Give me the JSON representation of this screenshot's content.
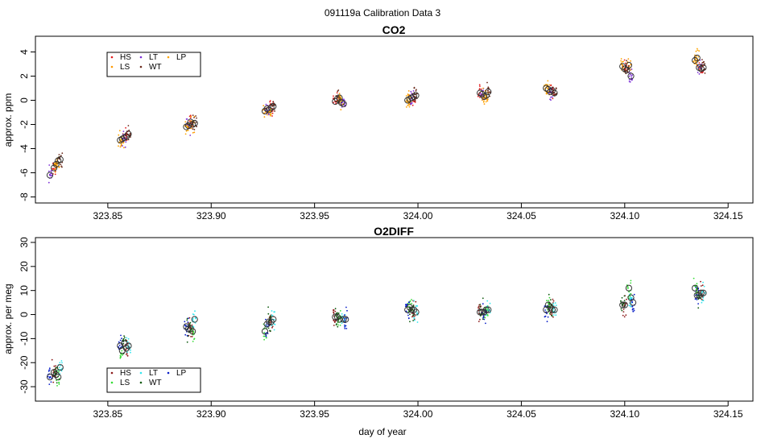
{
  "figure_title": "091119a   Calibration Data 3",
  "colors": {
    "HS": "#e41a1c",
    "LS": "#ff9900",
    "LT": "#7b2fd6",
    "WT": "#6b2a1c",
    "LP": "#ffa500",
    "o2_HS": "#8b1a1a",
    "o2_LS": "#33dd33",
    "o2_LT": "#33e6ee",
    "o2_WT": "#0f5a0f",
    "o2_LP": "#0a1fc8"
  },
  "x_ticks": [
    "323.85",
    "323.90",
    "323.95",
    "324.00",
    "324.05",
    "324.10",
    "324.15"
  ],
  "x_label": "day of year",
  "chart_data": [
    {
      "type": "scatter",
      "title": "CO2",
      "ylabel": "approx. ppm",
      "xlim": [
        323.815,
        324.162
      ],
      "ylim": [
        -8.5,
        5.3
      ],
      "y_ticks": [
        "4",
        "2",
        "0",
        "-2",
        "-4",
        "-6",
        "-8"
      ],
      "legend": {
        "position": "top-left",
        "entries": [
          "HS",
          "LS",
          "LT",
          "WT",
          "LP"
        ]
      },
      "series": [
        {
          "name": "HS",
          "x": [
            323.824,
            323.859,
            323.89,
            323.929,
            323.96,
            323.998,
            324.03,
            324.065,
            324.1,
            324.137
          ],
          "values": [
            -5.6,
            -3.0,
            -1.8,
            -0.6,
            -0.1,
            0.3,
            0.6,
            0.8,
            2.6,
            2.6
          ]
        },
        {
          "name": "LS",
          "x": [
            323.826,
            323.857,
            323.891,
            323.926,
            323.962,
            323.996,
            324.033,
            324.063,
            324.102,
            324.134
          ],
          "values": [
            -5.0,
            -3.2,
            -2.0,
            -0.9,
            0.2,
            0.1,
            0.4,
            0.9,
            2.9,
            3.3
          ]
        },
        {
          "name": "LT",
          "x": [
            323.822,
            323.858,
            323.889,
            323.927,
            323.964,
            323.997,
            324.031,
            324.064,
            324.103,
            324.136
          ],
          "values": [
            -6.2,
            -3.1,
            -2.1,
            -0.7,
            -0.3,
            0.2,
            0.5,
            0.7,
            2.0,
            2.7
          ]
        },
        {
          "name": "WT",
          "x": [
            323.827,
            323.86,
            323.892,
            323.93,
            323.961,
            323.999,
            324.034,
            324.066,
            324.101,
            324.138
          ],
          "values": [
            -4.9,
            -2.8,
            -1.9,
            -0.5,
            0.1,
            0.4,
            0.7,
            0.6,
            2.5,
            2.7
          ]
        },
        {
          "name": "LP",
          "x": [
            323.825,
            323.856,
            323.888,
            323.928,
            323.963,
            323.995,
            324.032,
            324.062,
            324.099,
            324.135
          ],
          "values": [
            -5.3,
            -3.3,
            -2.2,
            -0.8,
            -0.2,
            0.0,
            0.3,
            1.0,
            2.8,
            3.5
          ]
        }
      ]
    },
    {
      "type": "scatter",
      "title": "O2DIFF",
      "ylabel": "approx. per meg",
      "xlim": [
        323.815,
        324.162
      ],
      "ylim": [
        -36,
        32
      ],
      "y_ticks": [
        "30",
        "20",
        "10",
        "0",
        "-10",
        "-20",
        "-30"
      ],
      "legend": {
        "position": "bottom-left",
        "entries": [
          "HS",
          "LS",
          "LT",
          "WT",
          "LP"
        ]
      },
      "series": [
        {
          "name": "HS",
          "x": [
            323.824,
            323.859,
            323.89,
            323.929,
            323.96,
            323.998,
            324.03,
            324.065,
            324.1,
            324.137
          ],
          "values": [
            -24,
            -14,
            -6,
            -3,
            -1,
            2,
            1,
            2,
            4,
            9
          ]
        },
        {
          "name": "LS",
          "x": [
            323.826,
            323.857,
            323.891,
            323.926,
            323.962,
            323.996,
            324.033,
            324.063,
            324.102,
            324.134
          ],
          "values": [
            -26,
            -15,
            -7,
            -7,
            -2,
            3,
            2,
            4,
            11,
            11
          ]
        },
        {
          "name": "LT",
          "x": [
            323.827,
            323.86,
            323.892,
            323.93,
            323.964,
            323.999,
            324.034,
            324.066,
            324.103,
            324.138
          ],
          "values": [
            -22,
            -13,
            -2,
            -2,
            -2,
            1,
            2,
            2,
            7,
            9
          ]
        },
        {
          "name": "WT",
          "x": [
            323.825,
            323.858,
            323.889,
            323.928,
            323.961,
            323.997,
            324.031,
            324.064,
            324.099,
            324.136
          ],
          "values": [
            -25,
            -12,
            -6,
            -3,
            -1,
            2,
            1,
            3,
            4,
            8
          ]
        },
        {
          "name": "LP",
          "x": [
            323.822,
            323.856,
            323.888,
            323.927,
            323.965,
            323.995,
            324.032,
            324.062,
            324.104,
            324.135
          ],
          "values": [
            -26,
            -13,
            -5,
            -4,
            -2,
            2,
            1,
            2,
            5,
            8
          ]
        }
      ]
    }
  ]
}
